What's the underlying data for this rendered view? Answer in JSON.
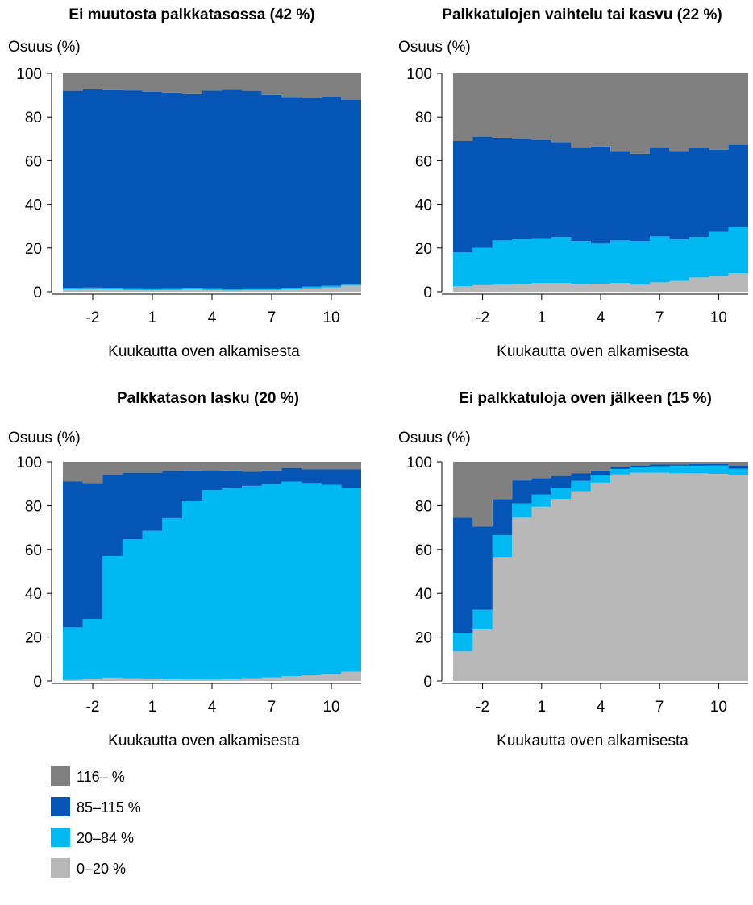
{
  "chart_data": [
    {
      "type": "area",
      "title": "Ei muutosta palkkatasossa (42 %)",
      "ylabel": "Osuus (%)",
      "xlabel": "Kuukautta oven alkamisesta",
      "ylim": [
        0,
        100
      ],
      "xticks": [
        -2,
        1,
        4,
        7,
        10
      ],
      "yticks": [
        0,
        20,
        40,
        60,
        80,
        100
      ],
      "x": [
        -3,
        -2,
        -1,
        0,
        1,
        2,
        3,
        4,
        5,
        6,
        7,
        8,
        9,
        10,
        11
      ],
      "stacked": true,
      "series": [
        {
          "name": "0–20 %",
          "values": [
            1.0,
            1.2,
            1.0,
            0.8,
            0.7,
            0.8,
            1.0,
            0.8,
            0.6,
            0.8,
            0.8,
            1.0,
            1.6,
            2.0,
            2.8
          ]
        },
        {
          "name": "20–84 %",
          "values": [
            0.8,
            0.7,
            0.8,
            0.8,
            0.8,
            0.8,
            0.8,
            0.8,
            0.8,
            0.7,
            0.7,
            0.8,
            0.8,
            0.7,
            0.7
          ]
        },
        {
          "name": "85–115 %",
          "values": [
            90.2,
            90.7,
            90.5,
            90.6,
            90.0,
            89.6,
            88.7,
            90.5,
            91.1,
            90.5,
            88.6,
            87.4,
            86.2,
            86.6,
            84.3
          ]
        },
        {
          "name": "116– %",
          "values": [
            8.0,
            7.4,
            7.7,
            7.8,
            8.5,
            8.8,
            9.5,
            7.9,
            7.5,
            8.0,
            9.9,
            10.8,
            11.4,
            10.7,
            12.2
          ]
        }
      ]
    },
    {
      "type": "area",
      "title": "Palkkatulojen vaihtelu tai kasvu (22 %)",
      "ylabel": "Osuus (%)",
      "xlabel": "Kuukautta oven alkamisesta",
      "ylim": [
        0,
        100
      ],
      "xticks": [
        -2,
        1,
        4,
        7,
        10
      ],
      "yticks": [
        0,
        20,
        40,
        60,
        80,
        100
      ],
      "x": [
        -3,
        -2,
        -1,
        0,
        1,
        2,
        3,
        4,
        5,
        6,
        7,
        8,
        9,
        10,
        11
      ],
      "stacked": true,
      "series": [
        {
          "name": "0–20 %",
          "values": [
            2.5,
            3.0,
            3.2,
            3.5,
            4.0,
            4.0,
            3.5,
            3.7,
            4.0,
            3.2,
            4.3,
            5.0,
            6.5,
            7.2,
            8.5
          ]
        },
        {
          "name": "20–84 %",
          "values": [
            15.5,
            17.0,
            20.3,
            20.7,
            20.5,
            21.0,
            19.7,
            18.3,
            19.5,
            20.0,
            21.0,
            19.0,
            18.5,
            20.3,
            21.0
          ]
        },
        {
          "name": "85–115 %",
          "values": [
            51.0,
            51.0,
            47.0,
            45.8,
            45.0,
            43.5,
            42.6,
            44.5,
            41.0,
            40.0,
            40.5,
            40.5,
            40.7,
            37.5,
            37.8
          ]
        },
        {
          "name": "116– %",
          "values": [
            31.0,
            29.0,
            29.5,
            30.0,
            30.5,
            31.5,
            34.2,
            33.5,
            35.5,
            36.8,
            34.2,
            35.5,
            34.3,
            35.0,
            32.7
          ]
        }
      ]
    },
    {
      "type": "area",
      "title": "Palkkatason lasku (20 %)",
      "ylabel": "Osuus (%)",
      "xlabel": "Kuukautta oven alkamisesta",
      "ylim": [
        0,
        100
      ],
      "xticks": [
        -2,
        1,
        4,
        7,
        10
      ],
      "yticks": [
        0,
        20,
        40,
        60,
        80,
        100
      ],
      "x": [
        -3,
        -2,
        -1,
        0,
        1,
        2,
        3,
        4,
        5,
        6,
        7,
        8,
        9,
        10,
        11
      ],
      "stacked": true,
      "series": [
        {
          "name": "0–20 %",
          "values": [
            0.5,
            1.0,
            1.5,
            1.2,
            1.0,
            0.8,
            0.7,
            0.6,
            0.8,
            1.2,
            1.6,
            2.2,
            2.8,
            3.2,
            4.2
          ]
        },
        {
          "name": "20–84 %",
          "values": [
            24.0,
            27.3,
            55.5,
            63.5,
            67.5,
            73.5,
            81.3,
            86.5,
            87.0,
            87.8,
            88.4,
            88.8,
            87.5,
            86.3,
            84.0
          ]
        },
        {
          "name": "85–115 %",
          "values": [
            66.5,
            62.0,
            37.0,
            30.3,
            26.5,
            21.5,
            14.0,
            9.0,
            8.2,
            6.5,
            6.0,
            6.2,
            6.2,
            7.0,
            8.3
          ]
        },
        {
          "name": "116– %",
          "values": [
            9.0,
            9.7,
            6.0,
            5.0,
            5.0,
            4.2,
            4.0,
            3.9,
            4.0,
            4.5,
            4.0,
            2.8,
            3.5,
            3.5,
            3.5
          ]
        }
      ]
    },
    {
      "type": "area",
      "title": "Ei palkkatuloja oven jälkeen (15 %)",
      "ylabel": "Osuus (%)",
      "xlabel": "Kuukautta oven alkamisesta",
      "ylim": [
        0,
        100
      ],
      "xticks": [
        -2,
        1,
        4,
        7,
        10
      ],
      "yticks": [
        0,
        20,
        40,
        60,
        80,
        100
      ],
      "x": [
        -3,
        -2,
        -1,
        0,
        1,
        2,
        3,
        4,
        5,
        6,
        7,
        8,
        9,
        10,
        11
      ],
      "stacked": true,
      "series": [
        {
          "name": "0–20 %",
          "values": [
            13.5,
            23.5,
            56.5,
            74.5,
            79.5,
            83.0,
            86.5,
            90.5,
            94.2,
            95.0,
            95.0,
            94.7,
            94.7,
            94.5,
            93.8
          ]
        },
        {
          "name": "20–84 %",
          "values": [
            8.5,
            9.0,
            10.0,
            6.5,
            5.5,
            5.0,
            4.8,
            3.5,
            2.5,
            2.5,
            3.0,
            3.5,
            3.5,
            3.8,
            3.0
          ]
        },
        {
          "name": "85–115 %",
          "values": [
            52.5,
            38.0,
            16.5,
            10.5,
            7.5,
            5.5,
            3.5,
            2.0,
            1.0,
            0.8,
            0.7,
            0.5,
            0.8,
            0.7,
            1.5
          ]
        },
        {
          "name": "116– %",
          "values": [
            25.5,
            29.5,
            17.0,
            8.5,
            7.5,
            6.5,
            5.2,
            4.0,
            2.3,
            1.7,
            1.3,
            1.3,
            1.0,
            1.0,
            1.7
          ]
        }
      ]
    }
  ],
  "legend": {
    "items": [
      {
        "label": "116– %",
        "color": "#808080"
      },
      {
        "label": "85–115 %",
        "color": "#0455B5"
      },
      {
        "label": "20–84 %",
        "color": "#00B9F2"
      },
      {
        "label": "0–20 %",
        "color": "#B8B8B8"
      }
    ]
  }
}
